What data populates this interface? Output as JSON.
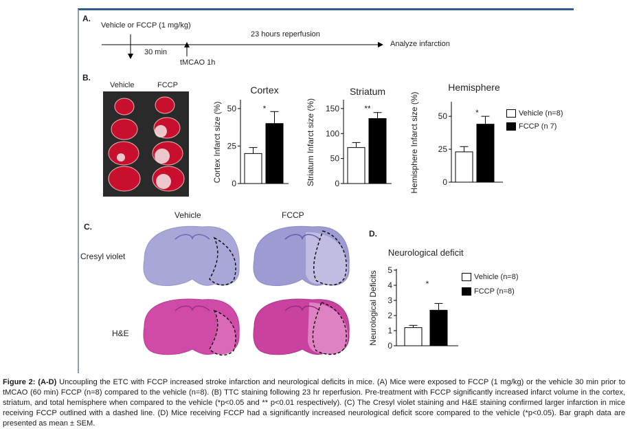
{
  "panelA": {
    "letter": "A.",
    "dose_text": "Vehicle or FCCP (1 mg/kg)",
    "reperfusion_text": "23 hours reperfusion",
    "analyze_text": "Analyze infarction",
    "pretreat_time": "30 min",
    "tmcao_text": "tMCAO 1h"
  },
  "panelB": {
    "letter": "B.",
    "vehicle_label": "Vehicle",
    "fccp_label": "FCCP"
  },
  "panelC": {
    "letter": "C.",
    "vehicle_label": "Vehicle",
    "fccp_label": "FCCP",
    "stain1": "Cresyl violet",
    "stain2": "H&E"
  },
  "panelD": {
    "letter": "D."
  },
  "legend": {
    "vehicle_label": "Vehicle (n=8)",
    "fccp_label_B": "FCCP (n 7)",
    "fccp_label_D": "FCCP (n=8)"
  },
  "colors": {
    "figure_border": "#2e5a8e",
    "vehicle_bar": "#ffffff",
    "fccp_bar": "#000000",
    "ttc_red": "#c8102e",
    "cresyl": "#a9a6d8",
    "he_pink": "#d04aa8"
  },
  "chart_data": [
    {
      "type": "bar",
      "title": "Cortex",
      "ylabel": "Cortex Infarct size (%)",
      "categories": [
        "Vehicle",
        "FCCP"
      ],
      "values": [
        20,
        40
      ],
      "errors": [
        4,
        8
      ],
      "ylim": [
        0,
        55
      ],
      "yticks": [
        0,
        25,
        50
      ],
      "significance": "*"
    },
    {
      "type": "bar",
      "title": "Striatum",
      "ylabel": "Striatum Infarct size (%)",
      "categories": [
        "Vehicle",
        "FCCP"
      ],
      "values": [
        72,
        130
      ],
      "errors": [
        10,
        12
      ],
      "ylim": [
        0,
        165
      ],
      "yticks": [
        0,
        50,
        100,
        150
      ],
      "significance": "**"
    },
    {
      "type": "bar",
      "title": "Hemisphere",
      "ylabel": "Hemisphere Infarct size (%)",
      "categories": [
        "Vehicle",
        "FCCP"
      ],
      "values": [
        23,
        44
      ],
      "errors": [
        4,
        6
      ],
      "ylim": [
        0,
        60
      ],
      "yticks": [
        0,
        25,
        50
      ],
      "significance": "*"
    },
    {
      "type": "bar",
      "title": "Neurological deficits",
      "ylabel": "Neurological Deficits",
      "categories": [
        "Vehicle",
        "FCCP"
      ],
      "values": [
        1.2,
        2.35
      ],
      "errors": [
        0.15,
        0.45
      ],
      "ylim": [
        0,
        5
      ],
      "yticks": [
        0,
        1,
        2,
        3,
        4,
        5
      ],
      "significance": "*"
    }
  ],
  "caption": {
    "label": "Figure 2: (A-D)",
    "text": " Uncoupling the ETC with FCCP increased stroke infarction and neurological deficits in mice. (A) Mice were exposed to FCCP (1 mg/kg) or the vehicle 30 min prior to tMCAO (60 min) FCCP (n=8) compared to the vehicle (n=8). (B) TTC staining following 23 hr reperfusion. Pre-treatment with FCCP significantly increased infarct volume in the cortex, striatum, and total hemisphere when compared to the vehicle (*p<0.05 and ** p<0.01 respectively). (C) The Cresyl violet staining and H&E staining confirmed larger infarction in mice receiving FCCP outlined with a dashed line. (D) Mice receiving FCCP had a significantly increased neurological deficit score compared to the vehicle (*p<0.05). Bar graph data are presented as mean ± SEM."
  }
}
